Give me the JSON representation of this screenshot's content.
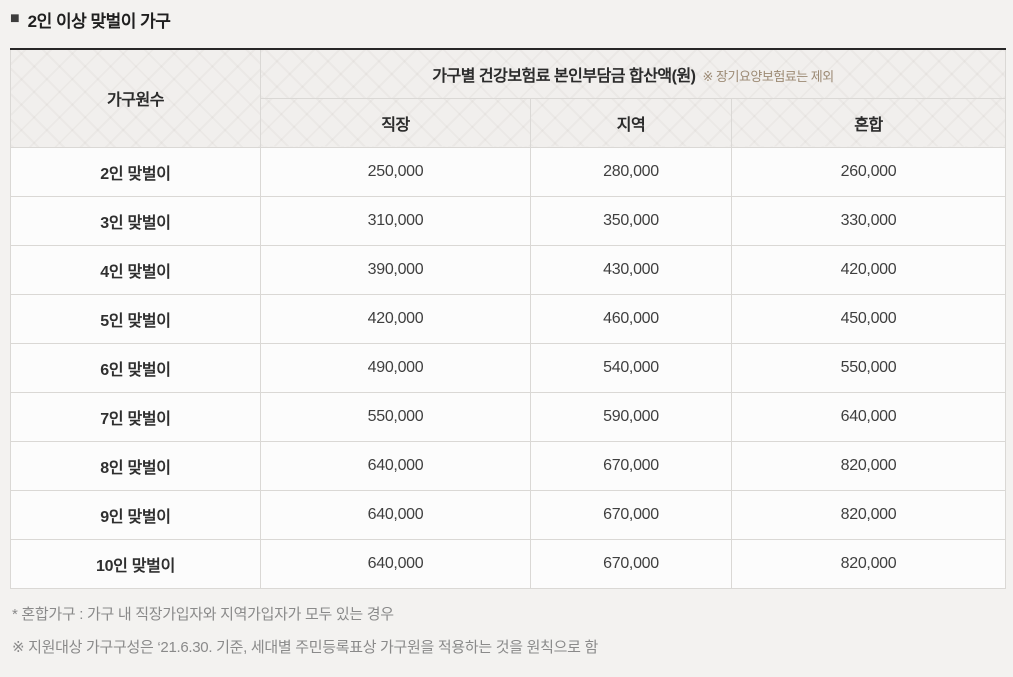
{
  "title": {
    "bullet": "■",
    "text": "2인 이상 맞벌이 가구"
  },
  "table": {
    "row_header": "가구원수",
    "group_header": {
      "main": "가구별 건강보험료 본인부담금 합산액(원)",
      "note": "※ 장기요양보험료는 제외"
    },
    "columns": [
      "직장",
      "지역",
      "혼합"
    ],
    "rows": [
      {
        "label": "2인 맞벌이",
        "values": [
          "250,000",
          "280,000",
          "260,000"
        ]
      },
      {
        "label": "3인 맞벌이",
        "values": [
          "310,000",
          "350,000",
          "330,000"
        ]
      },
      {
        "label": "4인 맞벌이",
        "values": [
          "390,000",
          "430,000",
          "420,000"
        ]
      },
      {
        "label": "5인 맞벌이",
        "values": [
          "420,000",
          "460,000",
          "450,000"
        ]
      },
      {
        "label": "6인 맞벌이",
        "values": [
          "490,000",
          "540,000",
          "550,000"
        ]
      },
      {
        "label": "7인 맞벌이",
        "values": [
          "550,000",
          "590,000",
          "640,000"
        ]
      },
      {
        "label": "8인 맞벌이",
        "values": [
          "640,000",
          "670,000",
          "820,000"
        ]
      },
      {
        "label": "9인 맞벌이",
        "values": [
          "640,000",
          "670,000",
          "820,000"
        ]
      },
      {
        "label": "10인 맞벌이",
        "values": [
          "640,000",
          "670,000",
          "820,000"
        ]
      }
    ]
  },
  "footnotes": [
    "* 혼합가구 : 가구 내 직장가입자와 지역가입자가 모두 있는 경우",
    "※ 지원대상 가구구성은 ‘21.6.30. 기준, 세대별 주민등록표상 가구원을 적용하는 것을 원칙으로 함"
  ],
  "colors": {
    "page_bg": "#f3f2f0",
    "table_top_border": "#272727",
    "header_bg": "#f1efed",
    "grid_line": "#dad8d5",
    "header_body_divider": "#b6b4b1",
    "cell_bg": "#fcfcfc",
    "text_dark": "#2b2b2b",
    "group_note_accent": "#9c8a74",
    "footnote_text": "#8a8a8a"
  }
}
